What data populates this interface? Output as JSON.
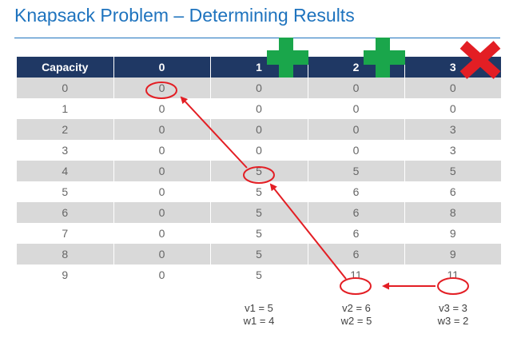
{
  "title": "Knapsack Problem – Determining Results",
  "table": {
    "headers": [
      "Capacity",
      "0",
      "1",
      "2",
      "3"
    ],
    "rows": [
      [
        "0",
        "0",
        "0",
        "0",
        "0"
      ],
      [
        "1",
        "0",
        "0",
        "0",
        "0"
      ],
      [
        "2",
        "0",
        "0",
        "0",
        "3"
      ],
      [
        "3",
        "0",
        "0",
        "0",
        "3"
      ],
      [
        "4",
        "0",
        "5",
        "5",
        "5"
      ],
      [
        "5",
        "0",
        "5",
        "6",
        "6"
      ],
      [
        "6",
        "0",
        "5",
        "6",
        "8"
      ],
      [
        "7",
        "0",
        "5",
        "6",
        "9"
      ],
      [
        "8",
        "0",
        "5",
        "6",
        "9"
      ],
      [
        "9",
        "0",
        "5",
        "11",
        "11"
      ]
    ]
  },
  "items": [
    {
      "value_label": "v1 = 5",
      "weight_label": "w1 = 4",
      "decision": "plus-icon"
    },
    {
      "value_label": "v2 = 6",
      "weight_label": "w2 = 5",
      "decision": "plus-icon"
    },
    {
      "value_label": "v3 = 3",
      "weight_label": "w3 = 2",
      "decision": "cross-icon"
    }
  ],
  "colors": {
    "title": "#1e73be",
    "header_bg": "#1f3864",
    "row_shade": "#d9d9d9",
    "arrow": "#e31e24",
    "plus": "#1aa64b",
    "cross": "#e31e24"
  }
}
